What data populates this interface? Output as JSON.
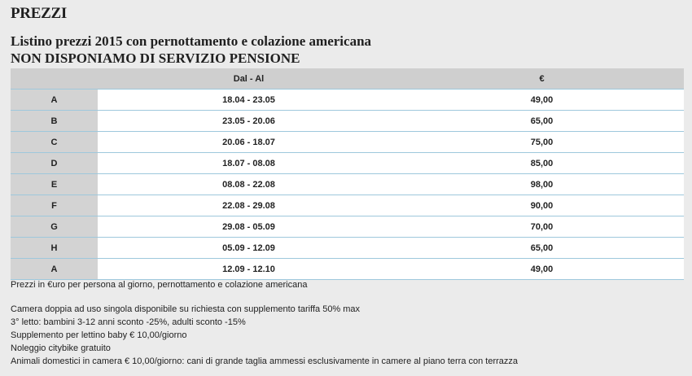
{
  "title": "PREZZI",
  "subtitle": {
    "line1": "Listino prezzi 2015 con pernottamento e colazione americana",
    "line2": "NON DISPONIAMO DI SERVIZIO PENSIONE"
  },
  "table": {
    "headers": [
      "",
      "Dal - Al",
      "€"
    ],
    "rows": [
      {
        "code": "A",
        "range": "18.04 - 23.05",
        "price": "49,00"
      },
      {
        "code": "B",
        "range": "23.05 - 20.06",
        "price": "65,00"
      },
      {
        "code": "C",
        "range": "20.06 - 18.07",
        "price": "75,00"
      },
      {
        "code": "D",
        "range": "18.07 - 08.08",
        "price": "85,00"
      },
      {
        "code": "E",
        "range": "08.08 - 22.08",
        "price": "98,00"
      },
      {
        "code": "F",
        "range": "22.08 - 29.08",
        "price": "90,00"
      },
      {
        "code": "G",
        "range": "29.08 - 05.09",
        "price": "70,00"
      },
      {
        "code": "H",
        "range": "05.09 - 12.09",
        "price": "65,00"
      },
      {
        "code": "A",
        "range": "12.09 - 12.10",
        "price": "49,00"
      }
    ]
  },
  "notes": {
    "intro": "Prezzi in €uro per persona al giorno, pernottamento e colazione americana",
    "lines": [
      "Camera doppia ad uso singola disponibile su richiesta con supplemento tariffa 50% max",
      "3° letto: bambini 3-12 anni sconto -25%, adulti sconto -15%",
      "Supplemento per lettino baby € 10,00/giorno",
      "Noleggio citybike gratuito",
      "Animali domestici in camera € 10,00/giorno: cani di grande taglia ammessi esclusivamente in camere al piano terra con terrazza"
    ]
  }
}
